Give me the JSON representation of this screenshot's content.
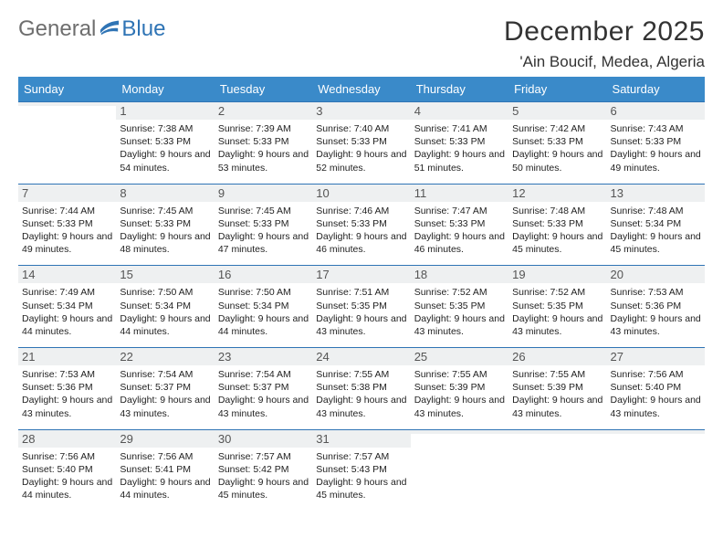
{
  "brand": {
    "word1": "General",
    "word2": "Blue"
  },
  "header": {
    "title": "December 2025",
    "location": "'Ain Boucif, Medea, Algeria"
  },
  "colors": {
    "header_bg": "#3a8ac9",
    "header_text": "#ffffff",
    "row_divider": "#2f74b5",
    "daynum_bg": "#eef0f1",
    "brand_gray": "#6e6e6e",
    "brand_blue": "#2f74b5",
    "page_bg": "#ffffff",
    "body_text": "#333333"
  },
  "weekdays": [
    "Sunday",
    "Monday",
    "Tuesday",
    "Wednesday",
    "Thursday",
    "Friday",
    "Saturday"
  ],
  "weeks": [
    [
      {
        "day": "",
        "sunrise": "",
        "sunset": "",
        "daylight": ""
      },
      {
        "day": "1",
        "sunrise": "Sunrise: 7:38 AM",
        "sunset": "Sunset: 5:33 PM",
        "daylight": "Daylight: 9 hours and 54 minutes."
      },
      {
        "day": "2",
        "sunrise": "Sunrise: 7:39 AM",
        "sunset": "Sunset: 5:33 PM",
        "daylight": "Daylight: 9 hours and 53 minutes."
      },
      {
        "day": "3",
        "sunrise": "Sunrise: 7:40 AM",
        "sunset": "Sunset: 5:33 PM",
        "daylight": "Daylight: 9 hours and 52 minutes."
      },
      {
        "day": "4",
        "sunrise": "Sunrise: 7:41 AM",
        "sunset": "Sunset: 5:33 PM",
        "daylight": "Daylight: 9 hours and 51 minutes."
      },
      {
        "day": "5",
        "sunrise": "Sunrise: 7:42 AM",
        "sunset": "Sunset: 5:33 PM",
        "daylight": "Daylight: 9 hours and 50 minutes."
      },
      {
        "day": "6",
        "sunrise": "Sunrise: 7:43 AM",
        "sunset": "Sunset: 5:33 PM",
        "daylight": "Daylight: 9 hours and 49 minutes."
      }
    ],
    [
      {
        "day": "7",
        "sunrise": "Sunrise: 7:44 AM",
        "sunset": "Sunset: 5:33 PM",
        "daylight": "Daylight: 9 hours and 49 minutes."
      },
      {
        "day": "8",
        "sunrise": "Sunrise: 7:45 AM",
        "sunset": "Sunset: 5:33 PM",
        "daylight": "Daylight: 9 hours and 48 minutes."
      },
      {
        "day": "9",
        "sunrise": "Sunrise: 7:45 AM",
        "sunset": "Sunset: 5:33 PM",
        "daylight": "Daylight: 9 hours and 47 minutes."
      },
      {
        "day": "10",
        "sunrise": "Sunrise: 7:46 AM",
        "sunset": "Sunset: 5:33 PM",
        "daylight": "Daylight: 9 hours and 46 minutes."
      },
      {
        "day": "11",
        "sunrise": "Sunrise: 7:47 AM",
        "sunset": "Sunset: 5:33 PM",
        "daylight": "Daylight: 9 hours and 46 minutes."
      },
      {
        "day": "12",
        "sunrise": "Sunrise: 7:48 AM",
        "sunset": "Sunset: 5:33 PM",
        "daylight": "Daylight: 9 hours and 45 minutes."
      },
      {
        "day": "13",
        "sunrise": "Sunrise: 7:48 AM",
        "sunset": "Sunset: 5:34 PM",
        "daylight": "Daylight: 9 hours and 45 minutes."
      }
    ],
    [
      {
        "day": "14",
        "sunrise": "Sunrise: 7:49 AM",
        "sunset": "Sunset: 5:34 PM",
        "daylight": "Daylight: 9 hours and 44 minutes."
      },
      {
        "day": "15",
        "sunrise": "Sunrise: 7:50 AM",
        "sunset": "Sunset: 5:34 PM",
        "daylight": "Daylight: 9 hours and 44 minutes."
      },
      {
        "day": "16",
        "sunrise": "Sunrise: 7:50 AM",
        "sunset": "Sunset: 5:34 PM",
        "daylight": "Daylight: 9 hours and 44 minutes."
      },
      {
        "day": "17",
        "sunrise": "Sunrise: 7:51 AM",
        "sunset": "Sunset: 5:35 PM",
        "daylight": "Daylight: 9 hours and 43 minutes."
      },
      {
        "day": "18",
        "sunrise": "Sunrise: 7:52 AM",
        "sunset": "Sunset: 5:35 PM",
        "daylight": "Daylight: 9 hours and 43 minutes."
      },
      {
        "day": "19",
        "sunrise": "Sunrise: 7:52 AM",
        "sunset": "Sunset: 5:35 PM",
        "daylight": "Daylight: 9 hours and 43 minutes."
      },
      {
        "day": "20",
        "sunrise": "Sunrise: 7:53 AM",
        "sunset": "Sunset: 5:36 PM",
        "daylight": "Daylight: 9 hours and 43 minutes."
      }
    ],
    [
      {
        "day": "21",
        "sunrise": "Sunrise: 7:53 AM",
        "sunset": "Sunset: 5:36 PM",
        "daylight": "Daylight: 9 hours and 43 minutes."
      },
      {
        "day": "22",
        "sunrise": "Sunrise: 7:54 AM",
        "sunset": "Sunset: 5:37 PM",
        "daylight": "Daylight: 9 hours and 43 minutes."
      },
      {
        "day": "23",
        "sunrise": "Sunrise: 7:54 AM",
        "sunset": "Sunset: 5:37 PM",
        "daylight": "Daylight: 9 hours and 43 minutes."
      },
      {
        "day": "24",
        "sunrise": "Sunrise: 7:55 AM",
        "sunset": "Sunset: 5:38 PM",
        "daylight": "Daylight: 9 hours and 43 minutes."
      },
      {
        "day": "25",
        "sunrise": "Sunrise: 7:55 AM",
        "sunset": "Sunset: 5:39 PM",
        "daylight": "Daylight: 9 hours and 43 minutes."
      },
      {
        "day": "26",
        "sunrise": "Sunrise: 7:55 AM",
        "sunset": "Sunset: 5:39 PM",
        "daylight": "Daylight: 9 hours and 43 minutes."
      },
      {
        "day": "27",
        "sunrise": "Sunrise: 7:56 AM",
        "sunset": "Sunset: 5:40 PM",
        "daylight": "Daylight: 9 hours and 43 minutes."
      }
    ],
    [
      {
        "day": "28",
        "sunrise": "Sunrise: 7:56 AM",
        "sunset": "Sunset: 5:40 PM",
        "daylight": "Daylight: 9 hours and 44 minutes."
      },
      {
        "day": "29",
        "sunrise": "Sunrise: 7:56 AM",
        "sunset": "Sunset: 5:41 PM",
        "daylight": "Daylight: 9 hours and 44 minutes."
      },
      {
        "day": "30",
        "sunrise": "Sunrise: 7:57 AM",
        "sunset": "Sunset: 5:42 PM",
        "daylight": "Daylight: 9 hours and 45 minutes."
      },
      {
        "day": "31",
        "sunrise": "Sunrise: 7:57 AM",
        "sunset": "Sunset: 5:43 PM",
        "daylight": "Daylight: 9 hours and 45 minutes."
      },
      {
        "day": "",
        "sunrise": "",
        "sunset": "",
        "daylight": ""
      },
      {
        "day": "",
        "sunrise": "",
        "sunset": "",
        "daylight": ""
      },
      {
        "day": "",
        "sunrise": "",
        "sunset": "",
        "daylight": ""
      }
    ]
  ]
}
